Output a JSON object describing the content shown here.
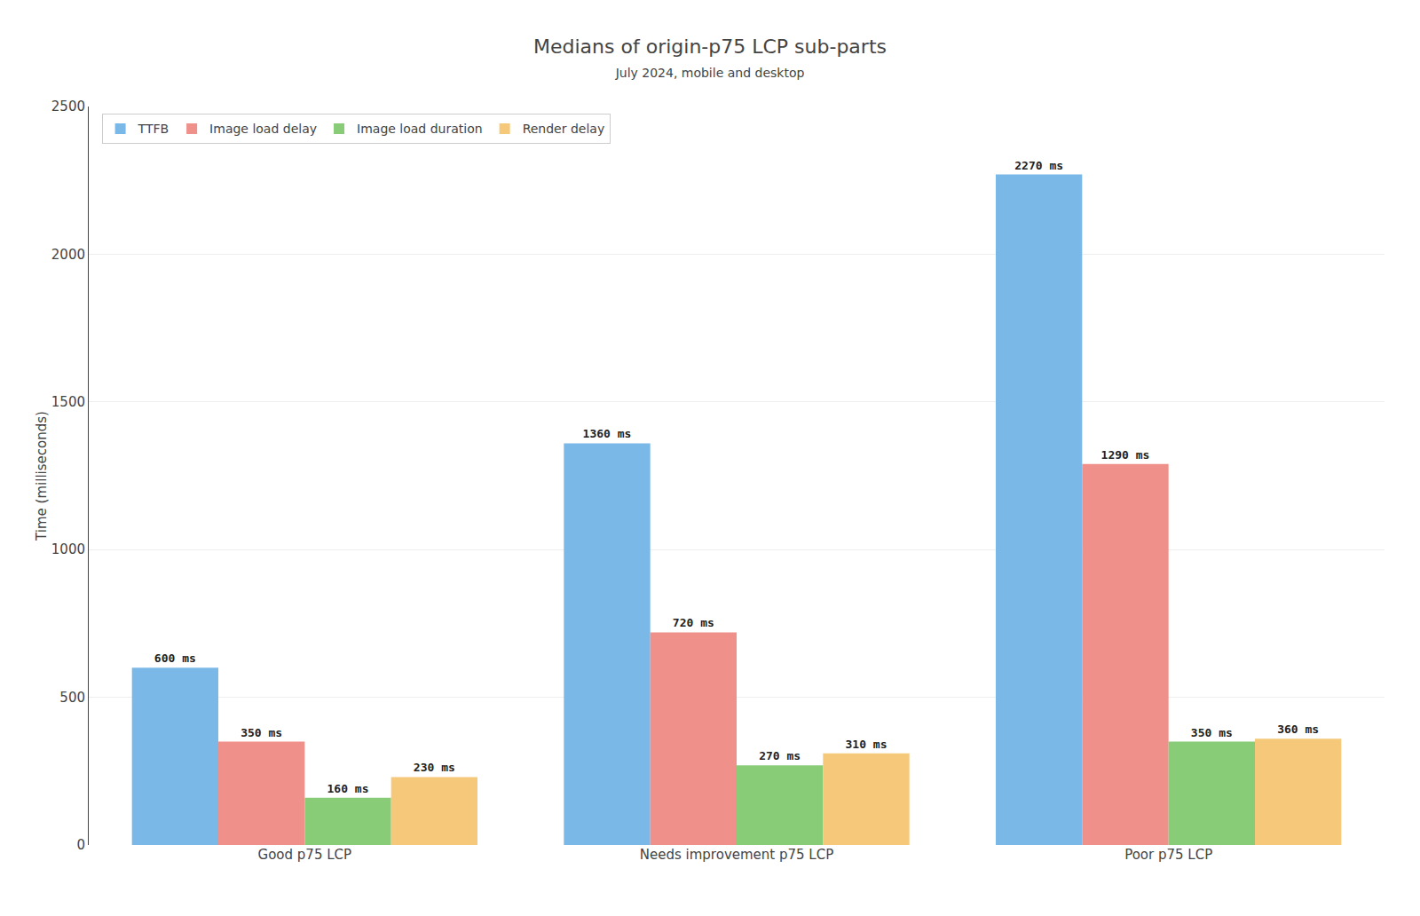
{
  "chart_data": {
    "type": "bar",
    "title": "Medians of origin-p75 LCP sub-parts",
    "subtitle": "July 2024, mobile and desktop",
    "categories": [
      "Good p75 LCP",
      "Needs improvement p75 LCP",
      "Poor p75 LCP"
    ],
    "series": [
      {
        "name": "TTFB",
        "color": "#7ab8e8",
        "values": [
          600,
          1360,
          2270
        ],
        "value_labels": [
          "600 ms",
          "1360 ms",
          "2270 ms"
        ]
      },
      {
        "name": "Image load delay",
        "color": "#f0908a",
        "values": [
          350,
          720,
          1290
        ],
        "value_labels": [
          "350 ms",
          "720 ms",
          "1290 ms"
        ]
      },
      {
        "name": "Image load duration",
        "color": "#88cc77",
        "values": [
          160,
          270,
          350
        ],
        "value_labels": [
          "160 ms",
          "270 ms",
          "350 ms"
        ]
      },
      {
        "name": "Render delay",
        "color": "#f5c87a",
        "values": [
          230,
          310,
          360
        ],
        "value_labels": [
          "230 ms",
          "310 ms",
          "360 ms"
        ]
      }
    ],
    "ylabel": "Time (milliseconds)",
    "ylim": [
      0,
      2500
    ],
    "yticks": [
      0,
      500,
      1000,
      1500,
      2000,
      2500
    ],
    "grid": true,
    "legend": "upper left",
    "data_labels": true
  }
}
